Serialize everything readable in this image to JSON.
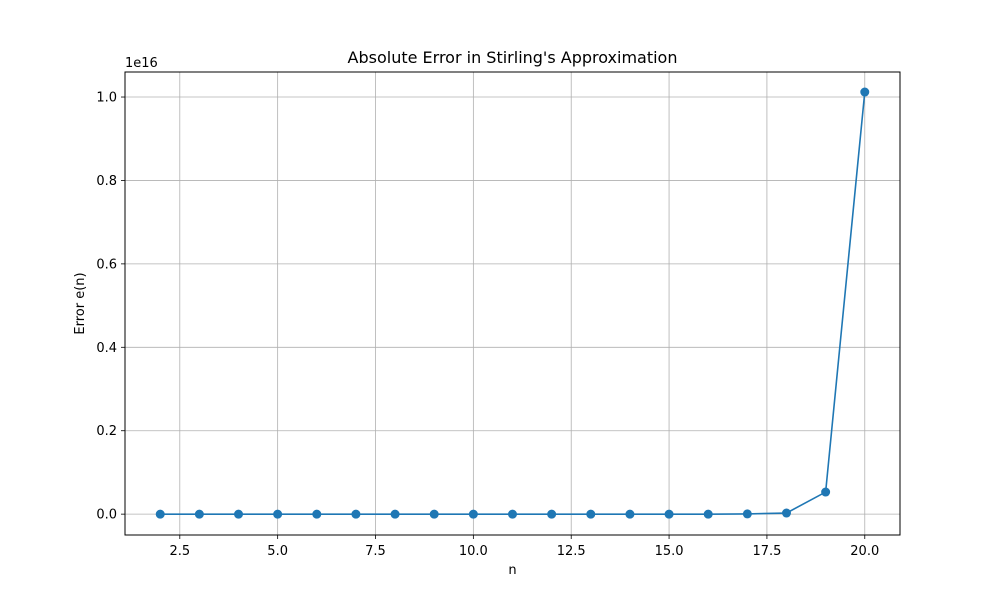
{
  "chart_data": {
    "type": "line",
    "title": "Absolute Error in Stirling's Approximation",
    "xlabel": "n",
    "ylabel": "Error e(n)",
    "y_offset_label": "1e16",
    "xlim": [
      1.1,
      20.9
    ],
    "ylim": [
      -0.05,
      1.06
    ],
    "y_scale_note": "values in units of 1e16",
    "grid": true,
    "markers": true,
    "color": "#1f77b4",
    "x_ticks": [
      {
        "value": 2.5,
        "label": "2.5"
      },
      {
        "value": 5.0,
        "label": "5.0"
      },
      {
        "value": 7.5,
        "label": "7.5"
      },
      {
        "value": 10.0,
        "label": "10.0"
      },
      {
        "value": 12.5,
        "label": "12.5"
      },
      {
        "value": 15.0,
        "label": "15.0"
      },
      {
        "value": 17.5,
        "label": "17.5"
      },
      {
        "value": 20.0,
        "label": "20.0"
      }
    ],
    "y_ticks": [
      {
        "value": 0.0,
        "label": "0.0"
      },
      {
        "value": 0.2,
        "label": "0.2"
      },
      {
        "value": 0.4,
        "label": "0.4"
      },
      {
        "value": 0.6,
        "label": "0.6"
      },
      {
        "value": 0.8,
        "label": "0.8"
      },
      {
        "value": 1.0,
        "label": "1.0"
      }
    ],
    "x": [
      2,
      3,
      4,
      5,
      6,
      7,
      8,
      9,
      10,
      11,
      12,
      13,
      14,
      15,
      16,
      17,
      18,
      19,
      20
    ],
    "y": [
      0,
      0,
      0,
      0,
      0,
      0,
      0,
      0,
      0,
      0,
      0,
      0,
      0,
      0,
      0,
      0.0005,
      0.0027,
      0.053,
      1.012
    ]
  }
}
